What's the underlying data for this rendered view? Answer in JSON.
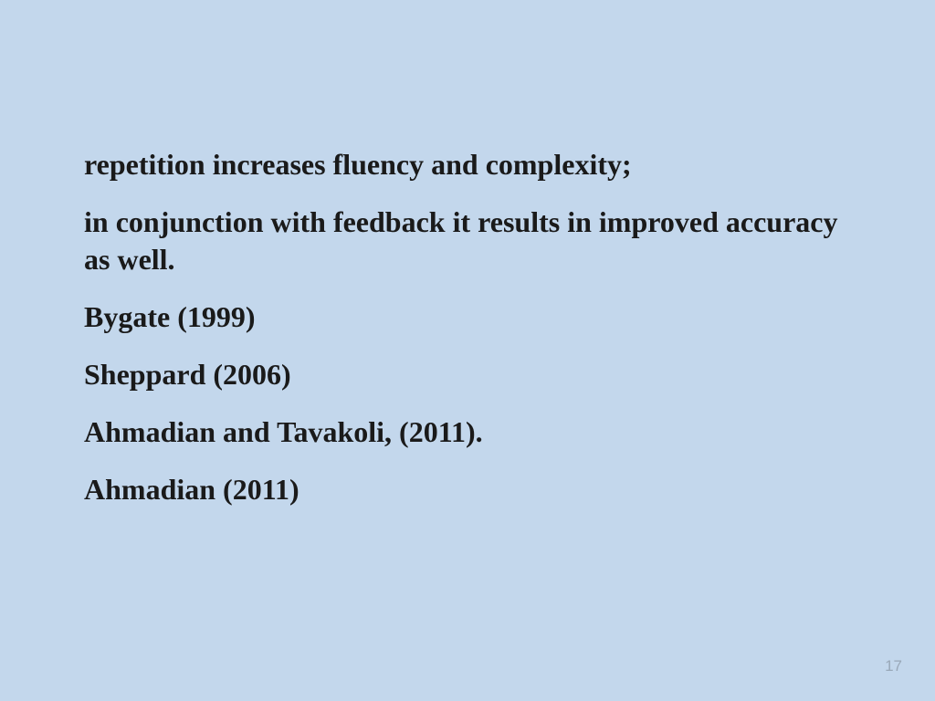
{
  "slide": {
    "background_color": "#c3d7ec",
    "text_color": "#1a1a1a",
    "font_family": "Georgia, serif",
    "font_size_pt": 24,
    "font_weight": "bold",
    "lines": [
      "repetition increases fluency and complexity;",
      "in conjunction with feedback it results in improved accuracy as well.",
      "Bygate (1999)",
      "Sheppard (2006)",
      "Ahmadian and Tavakoli, (2011).",
      "Ahmadian (2011)"
    ],
    "page_number": "17",
    "page_number_color": "#99a8b8"
  }
}
